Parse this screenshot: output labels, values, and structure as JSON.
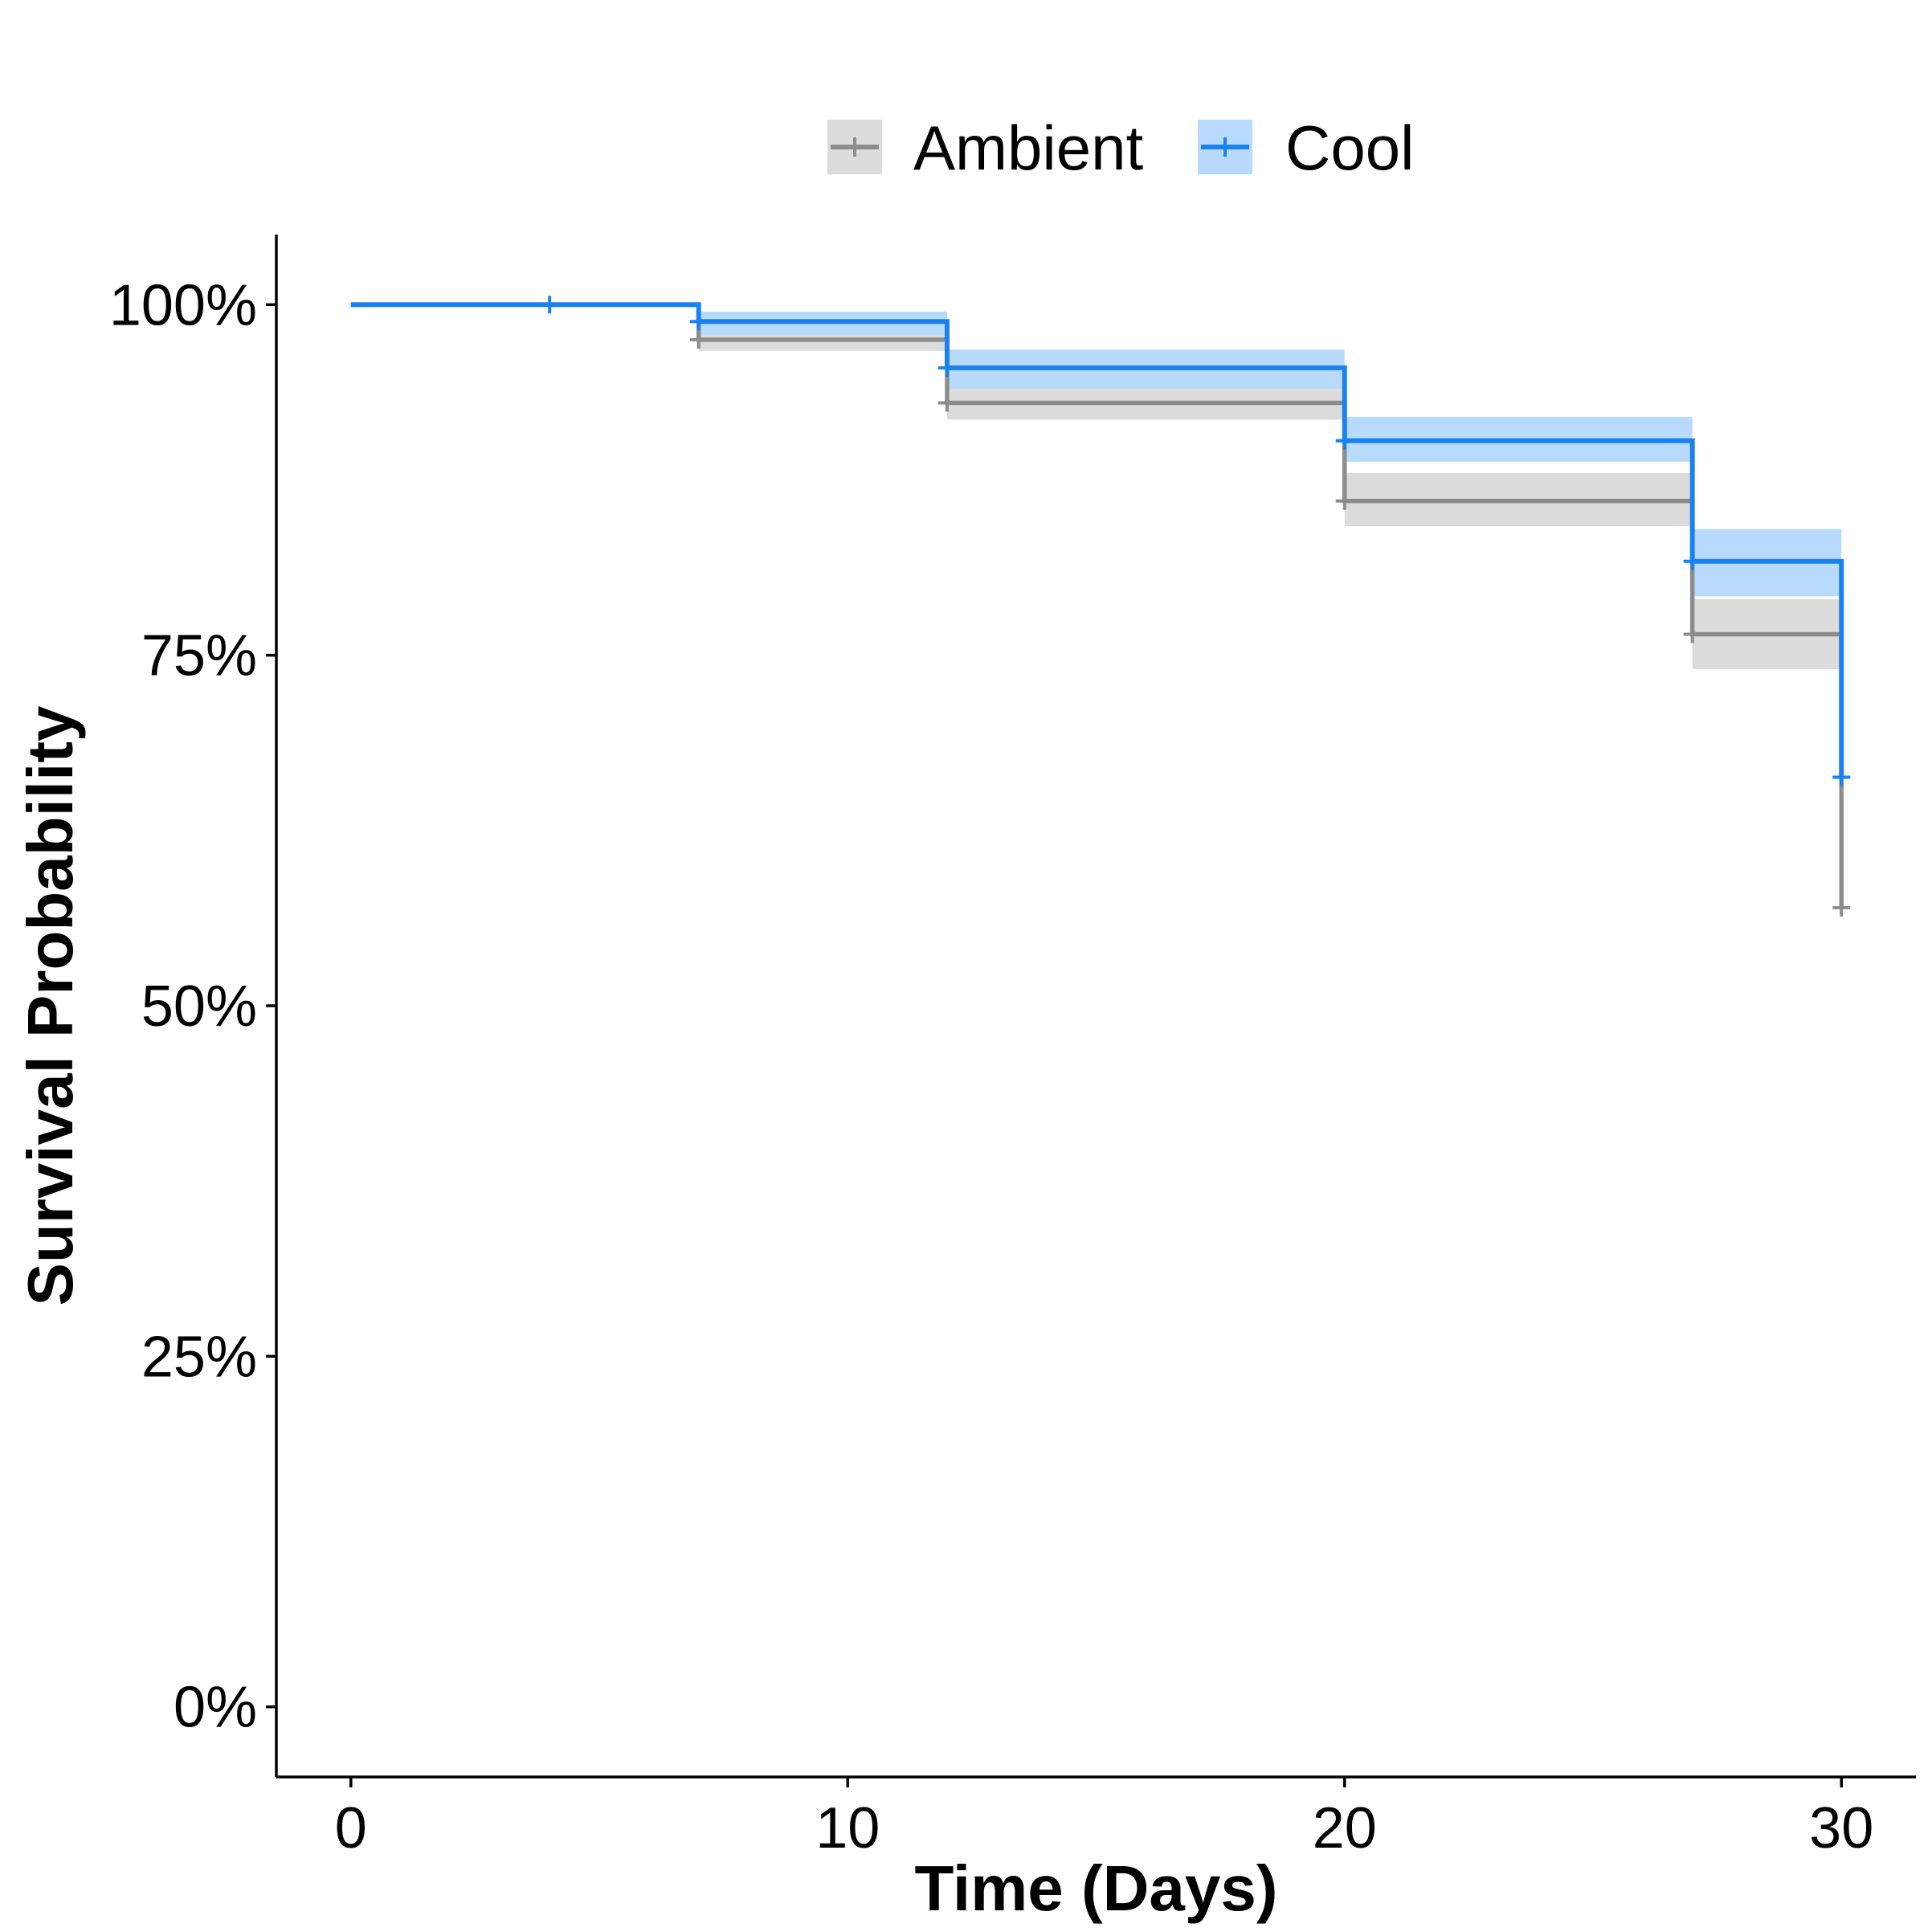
{
  "chart_data": {
    "type": "line",
    "subtype": "kaplan-meier step survival curve with confidence bands and censor marks",
    "title": "",
    "xlabel": "Time (Days)",
    "ylabel": "Survival Probability",
    "xlim": [
      -1.5,
      31.5
    ],
    "ylim": [
      -0.05,
      1.05
    ],
    "x_ticks": [
      0,
      10,
      20,
      30
    ],
    "x_tick_labels": [
      "0",
      "10",
      "20",
      "30"
    ],
    "y_ticks": [
      0,
      0.25,
      0.5,
      0.75,
      1.0
    ],
    "y_tick_labels": [
      "0%",
      "25%",
      "50%",
      "75%",
      "100%"
    ],
    "grid": false,
    "legend_position": "top",
    "series": [
      {
        "name": "Ambient",
        "color": "#8c8c8c",
        "band_color": "#dcdcdc",
        "steps": [
          {
            "x": 0,
            "y": 1.0
          },
          {
            "x": 7,
            "y": 0.975
          },
          {
            "x": 12,
            "y": 0.93
          },
          {
            "x": 20,
            "y": 0.86
          },
          {
            "x": 27,
            "y": 0.765
          },
          {
            "x": 30,
            "y": 0.57
          }
        ],
        "end_x": 30,
        "ci_upper": [
          1.0,
          0.985,
          0.945,
          0.88,
          0.79,
          0.79
        ],
        "ci_lower": [
          1.0,
          0.967,
          0.918,
          0.842,
          0.74,
          0.74
        ],
        "censor_x": [
          7,
          12,
          20,
          27,
          30
        ]
      },
      {
        "name": "Cool",
        "color": "#1a82f0",
        "band_color": "#b8dafc",
        "steps": [
          {
            "x": 0,
            "y": 1.0
          },
          {
            "x": 7,
            "y": 0.988
          },
          {
            "x": 12,
            "y": 0.955
          },
          {
            "x": 20,
            "y": 0.903
          },
          {
            "x": 27,
            "y": 0.817
          },
          {
            "x": 30,
            "y": 0.663
          }
        ],
        "end_x": 30,
        "ci_upper": [
          1.0,
          0.995,
          0.968,
          0.92,
          0.84,
          0.84
        ],
        "ci_lower": [
          1.0,
          0.978,
          0.94,
          0.888,
          0.792,
          0.792
        ],
        "censor_x": [
          4,
          7,
          12,
          20,
          27,
          30
        ]
      }
    ]
  }
}
